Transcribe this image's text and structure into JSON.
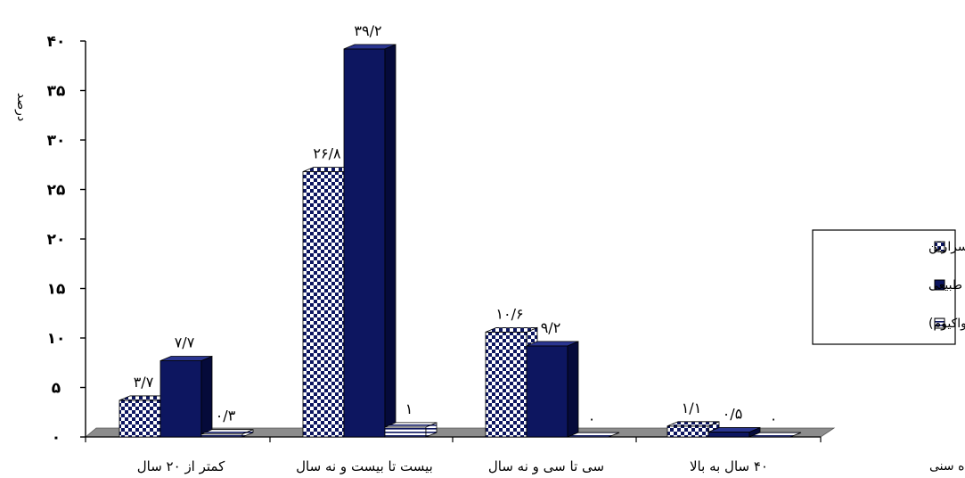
{
  "chart_data": {
    "type": "bar",
    "ylabel": "درصد",
    "xlabel": "محدوده سنی",
    "ylim": [
      0,
      40
    ],
    "yticks": [
      0,
      5,
      10,
      15,
      20,
      25,
      30,
      35,
      40
    ],
    "ytick_labels": [
      "۰",
      "۵",
      "۱۰",
      "۱۵",
      "۲۰",
      "۲۵",
      "۳۰",
      "۳۵",
      "۴۰"
    ],
    "categories": [
      "کمتر از ۲۰ سال",
      "بیست تا بیست و نه سال",
      "سی تا سی و نه سال",
      "۴۰ سال به بالا"
    ],
    "series": [
      {
        "name": "سزارین",
        "values": [
          3.7,
          26.8,
          10.6,
          1.1
        ],
        "labels": [
          "۳/۷",
          "۲۶/۸",
          "۱۰/۶",
          "۱/۱"
        ],
        "pattern": "checker"
      },
      {
        "name": "زایمان طبیعی",
        "values": [
          7.7,
          39.2,
          9.2,
          0.5
        ],
        "labels": [
          "۷/۷",
          "۳۹/۲",
          "۹/۲",
          "۰/۵"
        ],
        "color": "#0d1660"
      },
      {
        "name": "وسیله (واکیوم)",
        "values": [
          0.3,
          1,
          0,
          0
        ],
        "labels": [
          "۰/۳",
          "۱",
          "۰",
          "۰"
        ],
        "pattern": "stripes"
      }
    ],
    "legend_position": "right",
    "grid": false
  }
}
